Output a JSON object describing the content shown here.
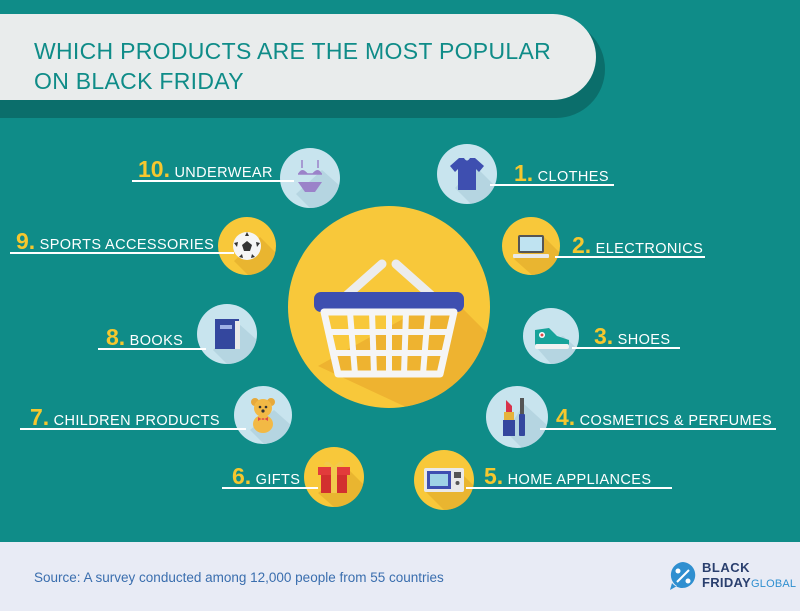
{
  "title_line1": "WHICH PRODUCTS ARE THE MOST POPULAR",
  "title_line2": "ON BLACK FRIDAY",
  "items": [
    {
      "num": "1.",
      "label": "CLOTHES",
      "icon": "tshirt-icon"
    },
    {
      "num": "2.",
      "label": "ELECTRONICS",
      "icon": "laptop-icon"
    },
    {
      "num": "3.",
      "label": "SHOES",
      "icon": "sneaker-icon"
    },
    {
      "num": "4.",
      "label": "COSMETICS & PERFUMES",
      "icon": "lipstick-icon"
    },
    {
      "num": "5.",
      "label": "HOME APPLIANCES",
      "icon": "microwave-icon"
    },
    {
      "num": "6.",
      "label": "GIFTS",
      "icon": "gift-icon"
    },
    {
      "num": "7.",
      "label": "CHILDREN PRODUCTS",
      "icon": "teddy-bear-icon"
    },
    {
      "num": "8.",
      "label": "BOOKS",
      "icon": "book-icon"
    },
    {
      "num": "9.",
      "label": "SPORTS ACCESSORIES",
      "icon": "soccer-ball-icon"
    },
    {
      "num": "10.",
      "label": "UNDERWEAR",
      "icon": "bikini-icon"
    }
  ],
  "center_icon": "shopping-basket-icon",
  "footer": {
    "source": "Source: A survey conducted among 12,000 people from 55 countries",
    "logo_line1": "BLACK",
    "logo_line2a": "FRIDAY",
    "logo_line2b": "GLOBAL",
    "logo_icon": "percent-bubble-icon"
  },
  "colors": {
    "background": "#0f8c88",
    "accent_yellow": "#f6c72e",
    "light_blue": "#c8e4ee",
    "title_text": "#0f8c88",
    "footer_text": "#3a6eae"
  }
}
